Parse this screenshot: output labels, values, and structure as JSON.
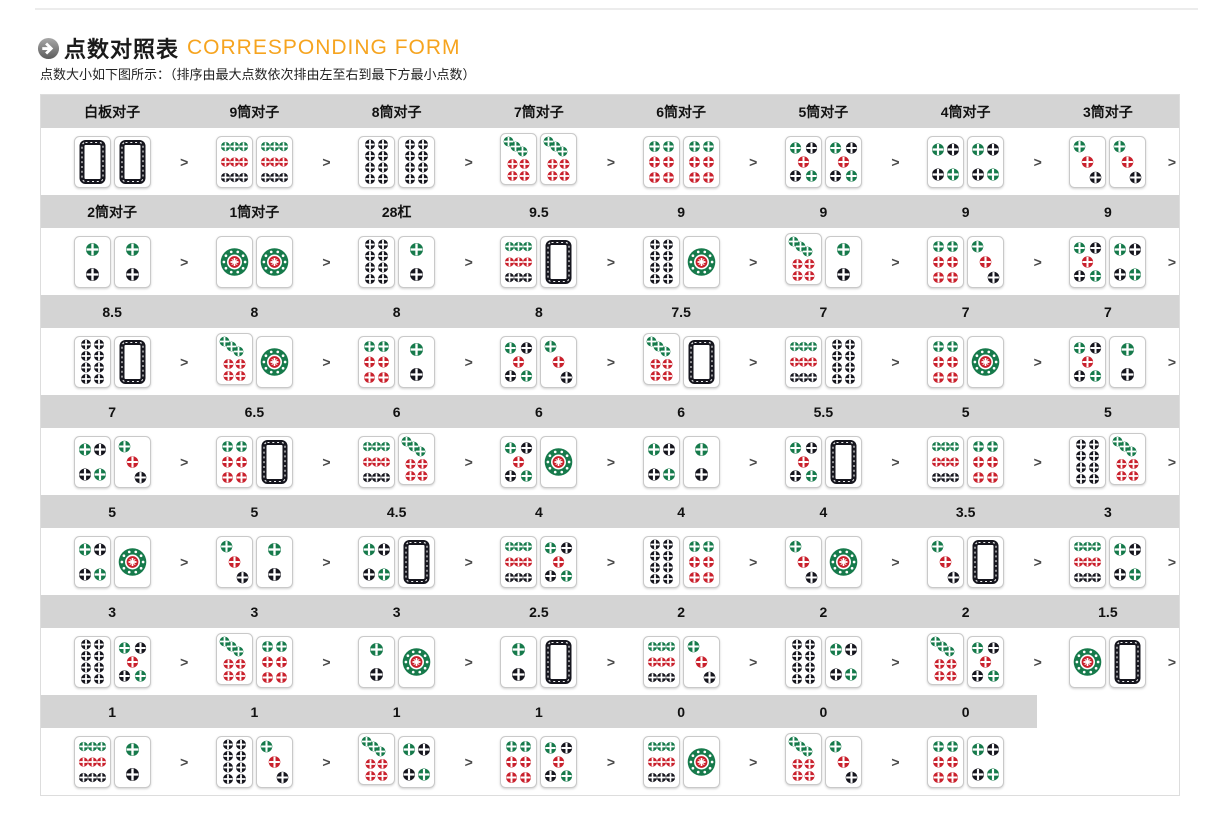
{
  "page": {
    "title_cn": "点数对照表",
    "title_en": "CORRESPONDING FORM",
    "subtitle": "点数大小如下图所示：（排序由最大点数依次排由左至右到最下方最小点数）",
    "separator": ">"
  },
  "colors": {
    "accent": "#F6A41F",
    "band": "#D4D4D4",
    "dot_green": "#167A4B",
    "dot_red": "#C9202C",
    "dot_black": "#16161E",
    "tile_border": "#C9C9C9"
  },
  "table": {
    "rows": [
      {
        "headers": [
          "白板对子",
          "9筒对子",
          "8筒对子",
          "7筒对子",
          "6筒对子",
          "5筒对子",
          "4筒对子",
          "3筒对子"
        ],
        "pairs": [
          [
            0,
            0
          ],
          [
            9,
            9
          ],
          [
            8,
            8
          ],
          [
            7,
            7
          ],
          [
            6,
            6
          ],
          [
            5,
            5
          ],
          [
            4,
            4
          ],
          [
            3,
            3
          ]
        ]
      },
      {
        "headers": [
          "2筒对子",
          "1筒对子",
          "28杠",
          "9.5",
          "9",
          "9",
          "9",
          "9"
        ],
        "pairs": [
          [
            2,
            2
          ],
          [
            1,
            1
          ],
          [
            8,
            2
          ],
          [
            9,
            0
          ],
          [
            8,
            1
          ],
          [
            7,
            2
          ],
          [
            6,
            3
          ],
          [
            5,
            4
          ]
        ]
      },
      {
        "headers": [
          "8.5",
          "8",
          "8",
          "8",
          "7.5",
          "7",
          "7",
          "7"
        ],
        "pairs": [
          [
            8,
            0
          ],
          [
            7,
            1
          ],
          [
            6,
            2
          ],
          [
            5,
            3
          ],
          [
            7,
            0
          ],
          [
            9,
            8
          ],
          [
            6,
            1
          ],
          [
            5,
            2
          ]
        ]
      },
      {
        "headers": [
          "7",
          "6.5",
          "6",
          "6",
          "6",
          "5.5",
          "5",
          "5"
        ],
        "pairs": [
          [
            4,
            3
          ],
          [
            6,
            0
          ],
          [
            9,
            7
          ],
          [
            5,
            1
          ],
          [
            4,
            2
          ],
          [
            5,
            0
          ],
          [
            9,
            6
          ],
          [
            8,
            7
          ]
        ]
      },
      {
        "headers": [
          "5",
          "5",
          "4.5",
          "4",
          "4",
          "4",
          "3.5",
          "3"
        ],
        "pairs": [
          [
            4,
            1
          ],
          [
            3,
            2
          ],
          [
            4,
            0
          ],
          [
            9,
            5
          ],
          [
            8,
            6
          ],
          [
            3,
            1
          ],
          [
            3,
            0
          ],
          [
            9,
            4
          ]
        ]
      },
      {
        "headers": [
          "3",
          "3",
          "3",
          "2.5",
          "2",
          "2",
          "2",
          "1.5"
        ],
        "pairs": [
          [
            8,
            5
          ],
          [
            7,
            6
          ],
          [
            2,
            1
          ],
          [
            2,
            0
          ],
          [
            9,
            3
          ],
          [
            8,
            4
          ],
          [
            7,
            5
          ],
          [
            1,
            0
          ]
        ]
      },
      {
        "headers": [
          "1",
          "1",
          "1",
          "1",
          "0",
          "0",
          "0"
        ],
        "pairs": [
          [
            9,
            2
          ],
          [
            8,
            3
          ],
          [
            7,
            4
          ],
          [
            6,
            5
          ],
          [
            9,
            1
          ],
          [
            7,
            3
          ],
          [
            6,
            4
          ]
        ]
      }
    ]
  }
}
